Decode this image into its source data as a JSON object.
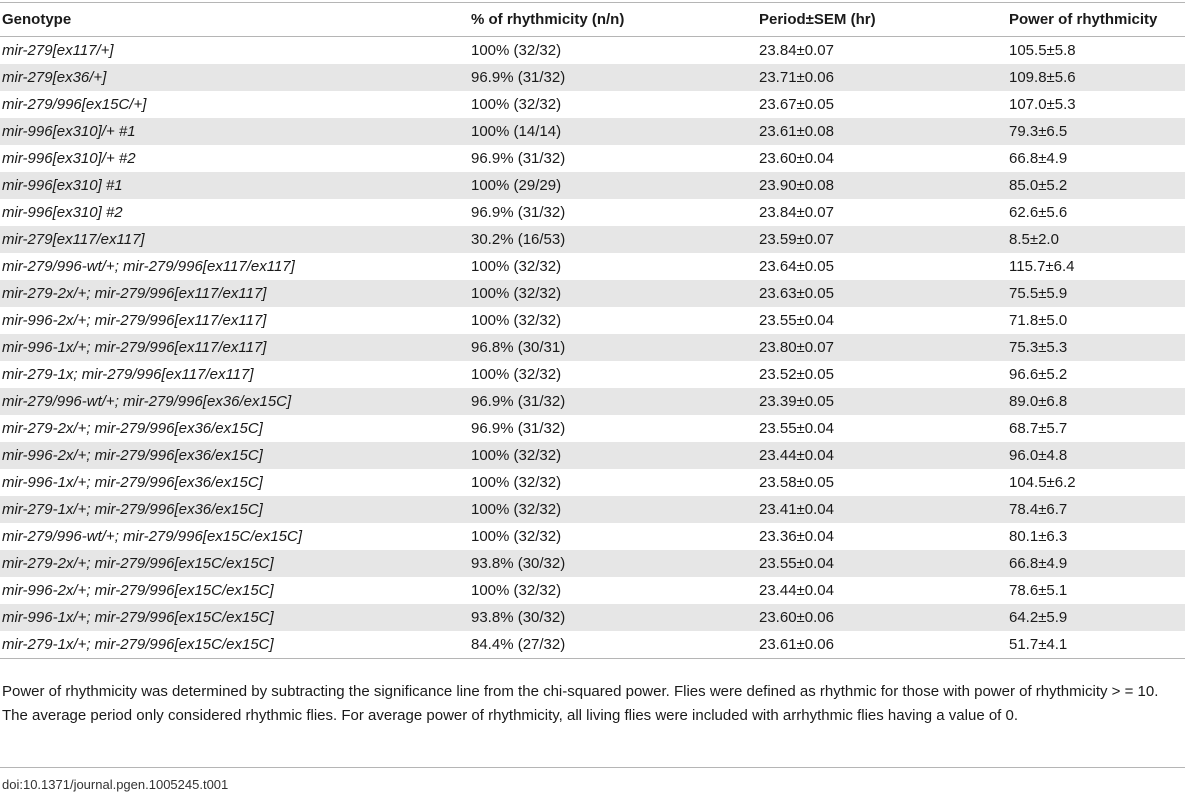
{
  "table": {
    "headers": [
      "Genotype",
      "% of rhythmicity (n/n)",
      "Period±SEM (hr)",
      "Power of rhythmicity"
    ],
    "rows": [
      [
        "mir-279[ex117/+]",
        "100% (32/32)",
        "23.84±0.07",
        "105.5±5.8"
      ],
      [
        "mir-279[ex36/+]",
        "96.9% (31/32)",
        "23.71±0.06",
        "109.8±5.6"
      ],
      [
        "mir-279/996[ex15C/+]",
        "100% (32/32)",
        "23.67±0.05",
        "107.0±5.3"
      ],
      [
        "mir-996[ex310]/+ #1",
        "100% (14/14)",
        "23.61±0.08",
        "79.3±6.5"
      ],
      [
        "mir-996[ex310]/+ #2",
        "96.9% (31/32)",
        "23.60±0.04",
        "66.8±4.9"
      ],
      [
        "mir-996[ex310] #1",
        "100% (29/29)",
        "23.90±0.08",
        "85.0±5.2"
      ],
      [
        "mir-996[ex310] #2",
        "96.9% (31/32)",
        "23.84±0.07",
        "62.6±5.6"
      ],
      [
        "mir-279[ex117/ex117]",
        "30.2% (16/53)",
        "23.59±0.07",
        "8.5±2.0"
      ],
      [
        "mir-279/996-wt/+; mir-279/996[ex117/ex117]",
        "100% (32/32)",
        "23.64±0.05",
        "115.7±6.4"
      ],
      [
        "mir-279-2x/+; mir-279/996[ex117/ex117]",
        "100% (32/32)",
        "23.63±0.05",
        "75.5±5.9"
      ],
      [
        "mir-996-2x/+; mir-279/996[ex117/ex117]",
        "100% (32/32)",
        "23.55±0.04",
        "71.8±5.0"
      ],
      [
        "mir-996-1x/+; mir-279/996[ex117/ex117]",
        "96.8% (30/31)",
        "23.80±0.07",
        "75.3±5.3"
      ],
      [
        "mir-279-1x; mir-279/996[ex117/ex117]",
        "100% (32/32)",
        "23.52±0.05",
        "96.6±5.2"
      ],
      [
        "mir-279/996-wt/+; mir-279/996[ex36/ex15C]",
        "96.9% (31/32)",
        "23.39±0.05",
        "89.0±6.8"
      ],
      [
        "mir-279-2x/+; mir-279/996[ex36/ex15C]",
        "96.9% (31/32)",
        "23.55±0.04",
        "68.7±5.7"
      ],
      [
        "mir-996-2x/+; mir-279/996[ex36/ex15C]",
        "100% (32/32)",
        "23.44±0.04",
        "96.0±4.8"
      ],
      [
        "mir-996-1x/+; mir-279/996[ex36/ex15C]",
        "100% (32/32)",
        "23.58±0.05",
        "104.5±6.2"
      ],
      [
        "mir-279-1x/+; mir-279/996[ex36/ex15C]",
        "100% (32/32)",
        "23.41±0.04",
        "78.4±6.7"
      ],
      [
        "mir-279/996-wt/+; mir-279/996[ex15C/ex15C]",
        "100% (32/32)",
        "23.36±0.04",
        "80.1±6.3"
      ],
      [
        "mir-279-2x/+; mir-279/996[ex15C/ex15C]",
        "93.8% (30/32)",
        "23.55±0.04",
        "66.8±4.9"
      ],
      [
        "mir-996-2x/+; mir-279/996[ex15C/ex15C]",
        "100% (32/32)",
        "23.44±0.04",
        "78.6±5.1"
      ],
      [
        "mir-996-1x/+; mir-279/996[ex15C/ex15C]",
        "93.8% (30/32)",
        "23.60±0.06",
        "64.2±5.9"
      ],
      [
        "mir-279-1x/+; mir-279/996[ex15C/ex15C]",
        "84.4% (27/32)",
        "23.61±0.06",
        "51.7±4.1"
      ]
    ]
  },
  "footnote": "Power of rhythmicity was determined by subtracting the significance line from the chi-squared power. Flies were defined as rhythmic for those with power of rhythmicity > = 10. The average period only considered rhythmic flies. For average power of rhythmicity, all living flies were included with arrhythmic flies having a value of 0.",
  "doi": "doi:10.1371/journal.pgen.1005245.t001"
}
